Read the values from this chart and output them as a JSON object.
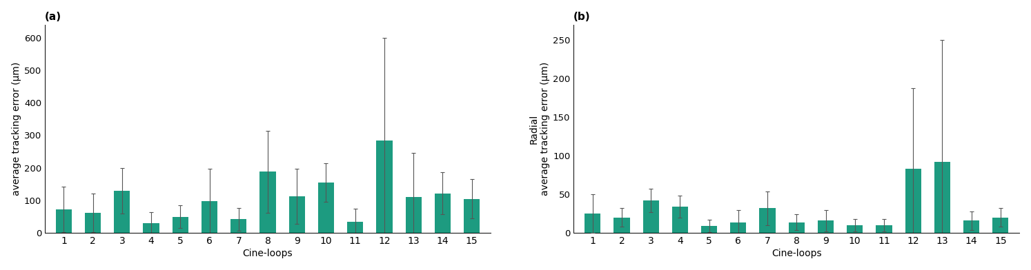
{
  "chart_a": {
    "title": "(a)",
    "xlabel": "Cine-loops",
    "ylabel": "average tracking error (μm)",
    "categories": [
      1,
      2,
      3,
      4,
      5,
      6,
      7,
      8,
      9,
      10,
      11,
      12,
      13,
      14,
      15
    ],
    "values": [
      72,
      62,
      130,
      30,
      50,
      98,
      42,
      188,
      113,
      155,
      35,
      283,
      110,
      122,
      105
    ],
    "errors": [
      70,
      60,
      70,
      35,
      35,
      100,
      35,
      125,
      85,
      60,
      40,
      315,
      135,
      65,
      60
    ],
    "ylim": [
      0,
      640
    ],
    "yticks": [
      0,
      100,
      200,
      300,
      400,
      500,
      600
    ],
    "bar_color": "#1d9b80",
    "error_color": "#555555"
  },
  "chart_b": {
    "title": "(b)",
    "xlabel": "Cine-loops",
    "ylabel": "Radial\naverage tracking error (μm)",
    "categories": [
      1,
      2,
      3,
      4,
      5,
      6,
      7,
      8,
      9,
      10,
      11,
      12,
      13,
      14,
      15
    ],
    "values": [
      25,
      20,
      42,
      34,
      9,
      14,
      32,
      14,
      16,
      10,
      10,
      83,
      92,
      16,
      20
    ],
    "errors": [
      25,
      12,
      15,
      14,
      8,
      16,
      22,
      10,
      14,
      8,
      8,
      105,
      158,
      12,
      12
    ],
    "ylim": [
      0,
      270
    ],
    "yticks": [
      0,
      50,
      100,
      150,
      200,
      250
    ],
    "bar_color": "#1d9b80",
    "error_color": "#555555"
  },
  "background_color": "#ffffff",
  "title_fontsize": 11,
  "label_fontsize": 10,
  "tick_fontsize": 9.5
}
